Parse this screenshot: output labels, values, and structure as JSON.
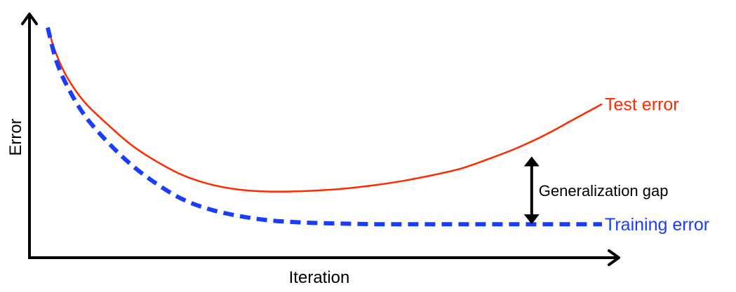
{
  "chart_data": {
    "type": "line",
    "title": "",
    "xlabel": "Iteration",
    "ylabel": "Error",
    "ticks": false,
    "grid": false,
    "legend": "none",
    "xlim": [
      0,
      100
    ],
    "ylim": [
      0,
      100
    ],
    "series": [
      {
        "name": "Test error",
        "color": "#ff2a00",
        "style": "solid",
        "x": [
          1.5,
          3,
          5,
          8,
          12,
          16,
          20,
          25,
          30,
          35,
          40,
          45,
          50,
          55,
          60,
          65,
          70,
          75,
          80,
          85,
          90,
          95,
          100
        ],
        "y": [
          97,
          85,
          74,
          63,
          53,
          44,
          37,
          30,
          25.5,
          23,
          22,
          22,
          22.5,
          23.5,
          25,
          27,
          29.5,
          32.5,
          37,
          42,
          48,
          55,
          62
        ]
      },
      {
        "name": "Training error",
        "color": "#1a3cff",
        "style": "dashed",
        "x": [
          1.5,
          3,
          5,
          8,
          12,
          16,
          20,
          25,
          30,
          35,
          40,
          45,
          50,
          55,
          60,
          65,
          70,
          75,
          80,
          85,
          90,
          95,
          100
        ],
        "y": [
          97,
          82,
          70,
          57,
          45,
          35,
          27,
          19,
          14,
          11,
          9,
          8,
          7.5,
          7.2,
          7,
          7,
          7,
          7,
          7,
          7,
          7,
          7,
          7
        ]
      }
    ],
    "annotations": [
      {
        "text": "Generalization gap",
        "type": "double-arrow",
        "x": 87.5,
        "y_from": 7,
        "y_to": 38
      }
    ]
  }
}
